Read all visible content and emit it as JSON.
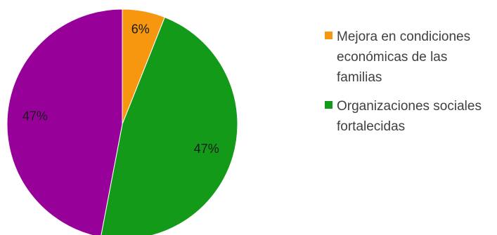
{
  "chart_data": {
    "type": "pie",
    "slices": [
      {
        "name": "Mejora en condiciones económicas de las familias",
        "value": 6,
        "label": "6%",
        "color": "#f7970f",
        "show_in_legend": true
      },
      {
        "name": "Organizaciones sociales fortalecidas",
        "value": 47,
        "label": "47%",
        "color": "#139a18",
        "show_in_legend": true
      },
      {
        "name": "",
        "value": 47,
        "label": "47%",
        "color": "#98009a",
        "show_in_legend": false
      }
    ],
    "legend_position": "right"
  }
}
